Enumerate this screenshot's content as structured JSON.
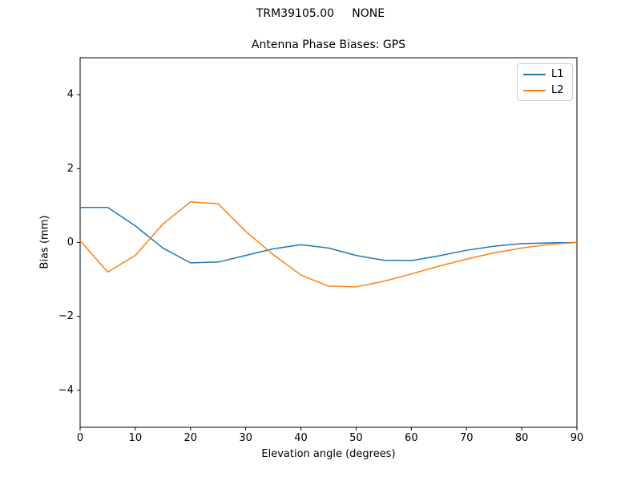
{
  "figure": {
    "suptitle": "TRM39105.00     NONE"
  },
  "chart_data": {
    "type": "line",
    "title": "Antenna Phase Biases: GPS",
    "suptitle": "TRM39105.00     NONE",
    "xlabel": "Elevation angle (degrees)",
    "ylabel": "Bias (mm)",
    "xlim": [
      0,
      90
    ],
    "ylim": [
      -5,
      5
    ],
    "xticks": [
      0,
      10,
      20,
      30,
      40,
      50,
      60,
      70,
      80,
      90
    ],
    "yticks": [
      -4,
      -2,
      0,
      2,
      4
    ],
    "grid": false,
    "legend_position": "upper right",
    "x": [
      0,
      5,
      10,
      15,
      20,
      25,
      30,
      35,
      40,
      45,
      50,
      55,
      60,
      65,
      70,
      75,
      80,
      85,
      90
    ],
    "series": [
      {
        "name": "L1",
        "color": "#1f77b4",
        "values": [
          0.95,
          0.95,
          0.45,
          -0.15,
          -0.55,
          -0.53,
          -0.35,
          -0.17,
          -0.06,
          -0.15,
          -0.35,
          -0.48,
          -0.49,
          -0.36,
          -0.21,
          -0.1,
          -0.03,
          -0.01,
          0.0
        ]
      },
      {
        "name": "L2",
        "color": "#ff7f0e",
        "values": [
          0.05,
          -0.8,
          -0.35,
          0.5,
          1.1,
          1.05,
          0.3,
          -0.33,
          -0.88,
          -1.18,
          -1.2,
          -1.05,
          -0.85,
          -0.64,
          -0.45,
          -0.28,
          -0.15,
          -0.05,
          0.0
        ]
      }
    ]
  }
}
